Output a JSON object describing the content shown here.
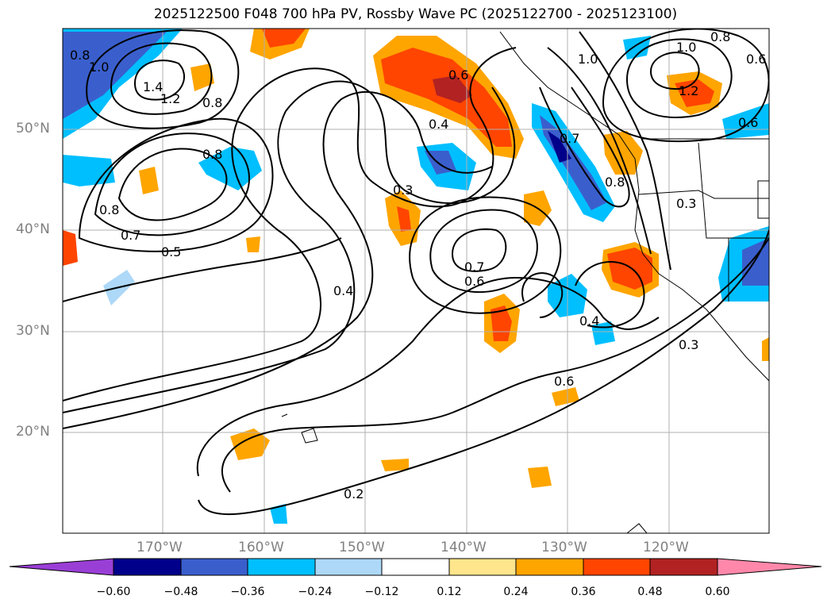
{
  "title": "2025122500 F048 700 hPa PV, Rossby Wave PC (2025122700 - 2025123100)",
  "map": {
    "lat_labels": [
      "50°N",
      "40°N",
      "30°N",
      "20°N"
    ],
    "lon_labels": [
      "170°W",
      "160°W",
      "150°W",
      "140°W",
      "130°W",
      "120°W"
    ],
    "contour_labels": [
      "1.0",
      "0.8",
      "1.4",
      "1.2",
      "0.8",
      "0.8",
      "0.8",
      "0.7",
      "0.5",
      "0.6",
      "0.4",
      "0.3",
      "0.7",
      "0.6",
      "0.4",
      "0.6",
      "0.2",
      "0.3",
      "0.7",
      "0.8",
      "0.3",
      "1.0",
      "0.8",
      "1.2",
      "0.6",
      "0.6",
      "1.0"
    ]
  },
  "colorbar": {
    "levels": [
      "−0.60",
      "−0.48",
      "−0.36",
      "−0.24",
      "−0.12",
      "0.12",
      "0.24",
      "0.36",
      "0.48",
      "0.60"
    ],
    "colors": [
      "#9a3fd6",
      "#00008b",
      "#3a5fcd",
      "#00bfff",
      "#add8f8",
      "#ffffff",
      "#ffe68c",
      "#ffa500",
      "#ff4500",
      "#b22222",
      "#ff88aa"
    ]
  }
}
